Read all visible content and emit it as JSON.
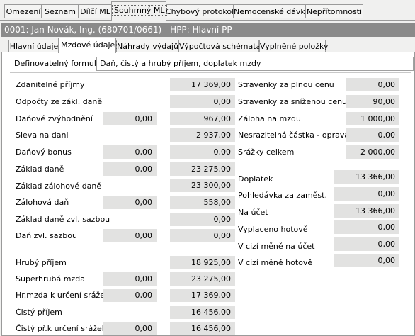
{
  "top_tabs": [
    "Omezení",
    "Seznam",
    "Dílčí ML",
    "Souhrnný ML",
    "Chybový protokol",
    "Nemocenské dávky",
    "Nepřítomnosti"
  ],
  "header_title": "0001: Jan Novák, Ing. (680701/0661) - HPP: Hlavní PP",
  "sub_tabs": [
    "Hlavní údaje",
    "Mzdové údaje",
    "Náhrady výdajů",
    "Výpočtová schémata",
    "Vyplněné položky"
  ],
  "formular": {
    "label": "Definovatelný formulář:",
    "value": "Daň, čistý a hrubý příjem, doplatek mzdy"
  },
  "left": {
    "zdanitelne_prijmy": {
      "label": "Zdanitelné příjmy",
      "val": "17 369,00"
    },
    "odpocty": {
      "label": "Odpočty ze zákl. daně",
      "val": "0,00"
    },
    "danove_zvyhodneni": {
      "label": "Daňové zvýhodnění",
      "val1": "0,00",
      "val2": "967,00"
    },
    "sleva": {
      "label": "Sleva na dani",
      "val": "2 937,00"
    },
    "danovy_bonus": {
      "label": "Daňový bonus",
      "val1": "0,00",
      "val2": "0,00"
    },
    "zaklad_dane": {
      "label": "Základ daně",
      "val1": "0,00",
      "val2": "23 275,00"
    },
    "zaklad_zalohove": {
      "label": "Základ zálohové daně",
      "val": "23 300,00"
    },
    "zalohova_dan": {
      "label": "Zálohová daň",
      "val1": "0,00",
      "val2": "558,00"
    },
    "zaklad_zvl": {
      "label": "Základ daně zvl. sazbou",
      "val": "0,00"
    },
    "dan_zvl": {
      "label": "Daň zvl. sazbou",
      "val1": "0,00",
      "val2": "0,00"
    },
    "hruby_prijem": {
      "label": "Hrubý příjem",
      "val": "18 925,00"
    },
    "superhruba": {
      "label": "Superhrubá mzda",
      "val1": "0,00",
      "val2": "23 275,00"
    },
    "hr_mzda": {
      "label": "Hr.mzda k určení srážek",
      "val1": "0,00",
      "val2": "17 369,00"
    },
    "cisty_prijem": {
      "label": "Čistý příjem",
      "val": "16 456,00"
    },
    "cisty_pr_sraze": {
      "label": "Čistý př.k určení srážek",
      "val1": "0,00",
      "val2": "16 456,00"
    }
  },
  "right": {
    "stravenky_plna": {
      "label": "Stravenky za plnou cenu",
      "val": "0,00"
    },
    "stravenky_snizena": {
      "label": "Stravenky za sníženou cenu",
      "val": "90,00"
    },
    "zaloha_mzdu": {
      "label": "Záloha na mzdu",
      "val": "1 000,00"
    },
    "nesrazitelna": {
      "label": "Nesrazitelná částka - oprava",
      "val": "0,00"
    },
    "srazky": {
      "label": "Srážky celkem",
      "val": "2 000,00"
    },
    "doplatek": {
      "label": "Doplatek",
      "val": "13 366,00"
    },
    "pohledavka": {
      "label": "Pohledávka za zaměst.",
      "val": "0,00"
    },
    "na_ucet": {
      "label": "Na účet",
      "val": "13 366,00"
    },
    "vyplaceno": {
      "label": "Vyplaceno hotově",
      "val": "0,00"
    },
    "cizi_ucet": {
      "label": "V cizí měně na účet",
      "val": "0,00"
    },
    "cizi_hotove": {
      "label": "V cizí měně hotově",
      "val": "0,00"
    }
  }
}
